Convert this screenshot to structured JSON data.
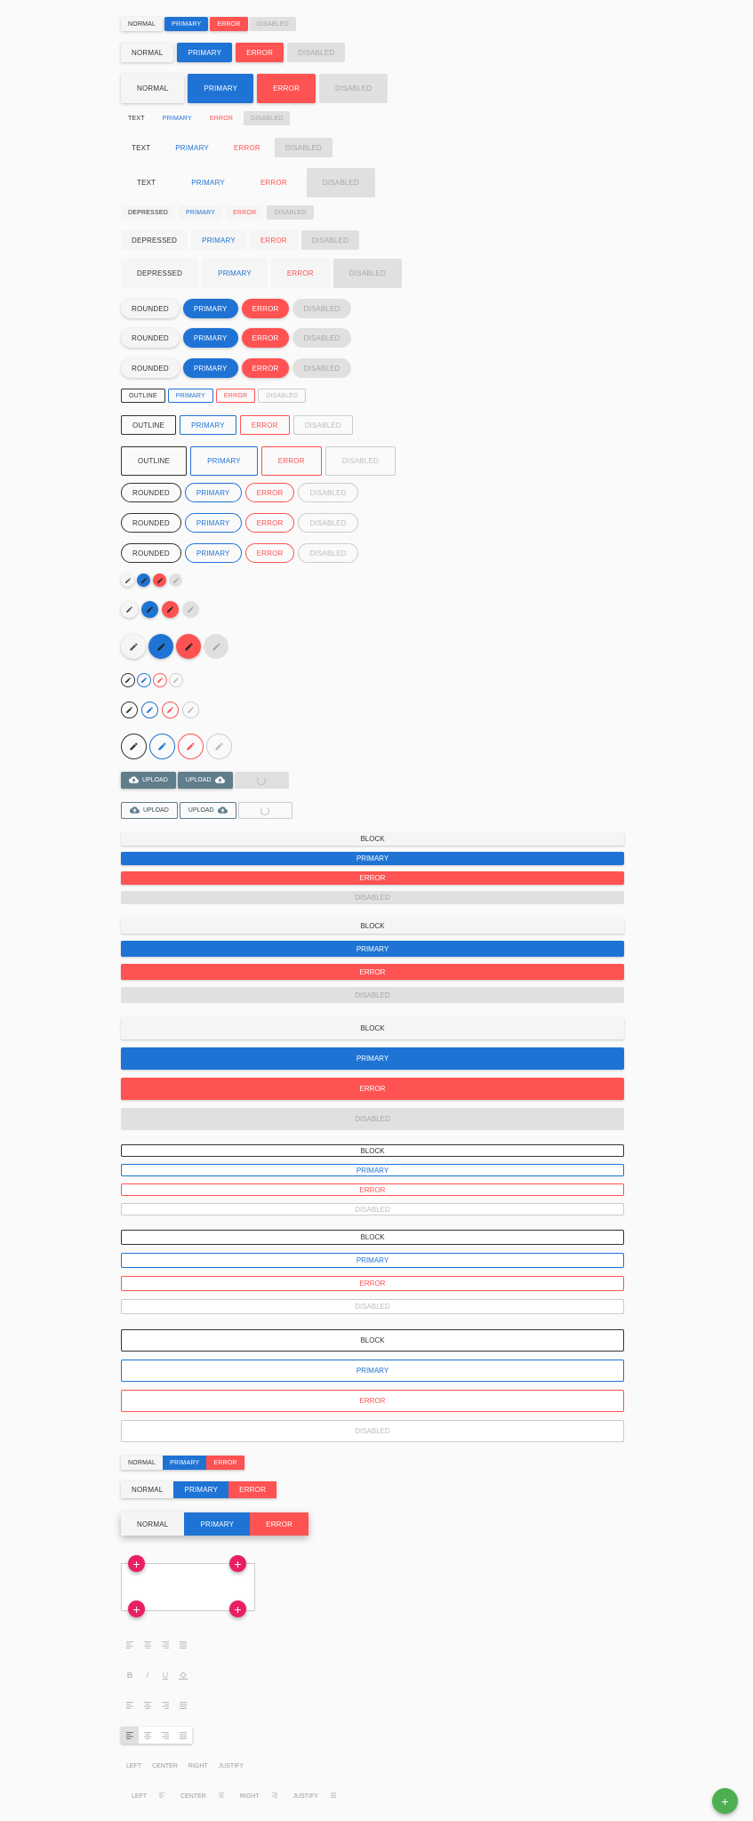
{
  "labels": {
    "normal": "NORMAL",
    "primary": "PRIMARY",
    "error": "ERROR",
    "disabled": "DISABLED",
    "text": "TEXT",
    "depressed": "DEPRESSED",
    "rounded": "ROUNDED",
    "outline": "OUTLINE",
    "block": "BLOCK",
    "upload": "UPLOAD"
  },
  "align_text": {
    "left": "LEFT",
    "center": "CENTER",
    "right": "RIGHT",
    "justify": "JUSTIFY"
  },
  "icons": {
    "pencil": "pencil-icon",
    "upload": "cloud-upload-icon",
    "plus": "plus-icon",
    "align_left": "align-left-icon",
    "align_center": "align-center-icon",
    "align_right": "align-right-icon",
    "align_justify": "align-justify-icon",
    "bold": "bold-icon",
    "italic": "italic-icon",
    "underline": "underline-icon",
    "fill": "format-color-fill-icon"
  },
  "colors": {
    "primary": "#1e73d4",
    "error": "#ff5252",
    "disabled": "#e0e0e0",
    "upload": "#607d8b",
    "fab_pink": "#e91e63",
    "fab_green": "#4caf50",
    "background": "#fafafa"
  }
}
